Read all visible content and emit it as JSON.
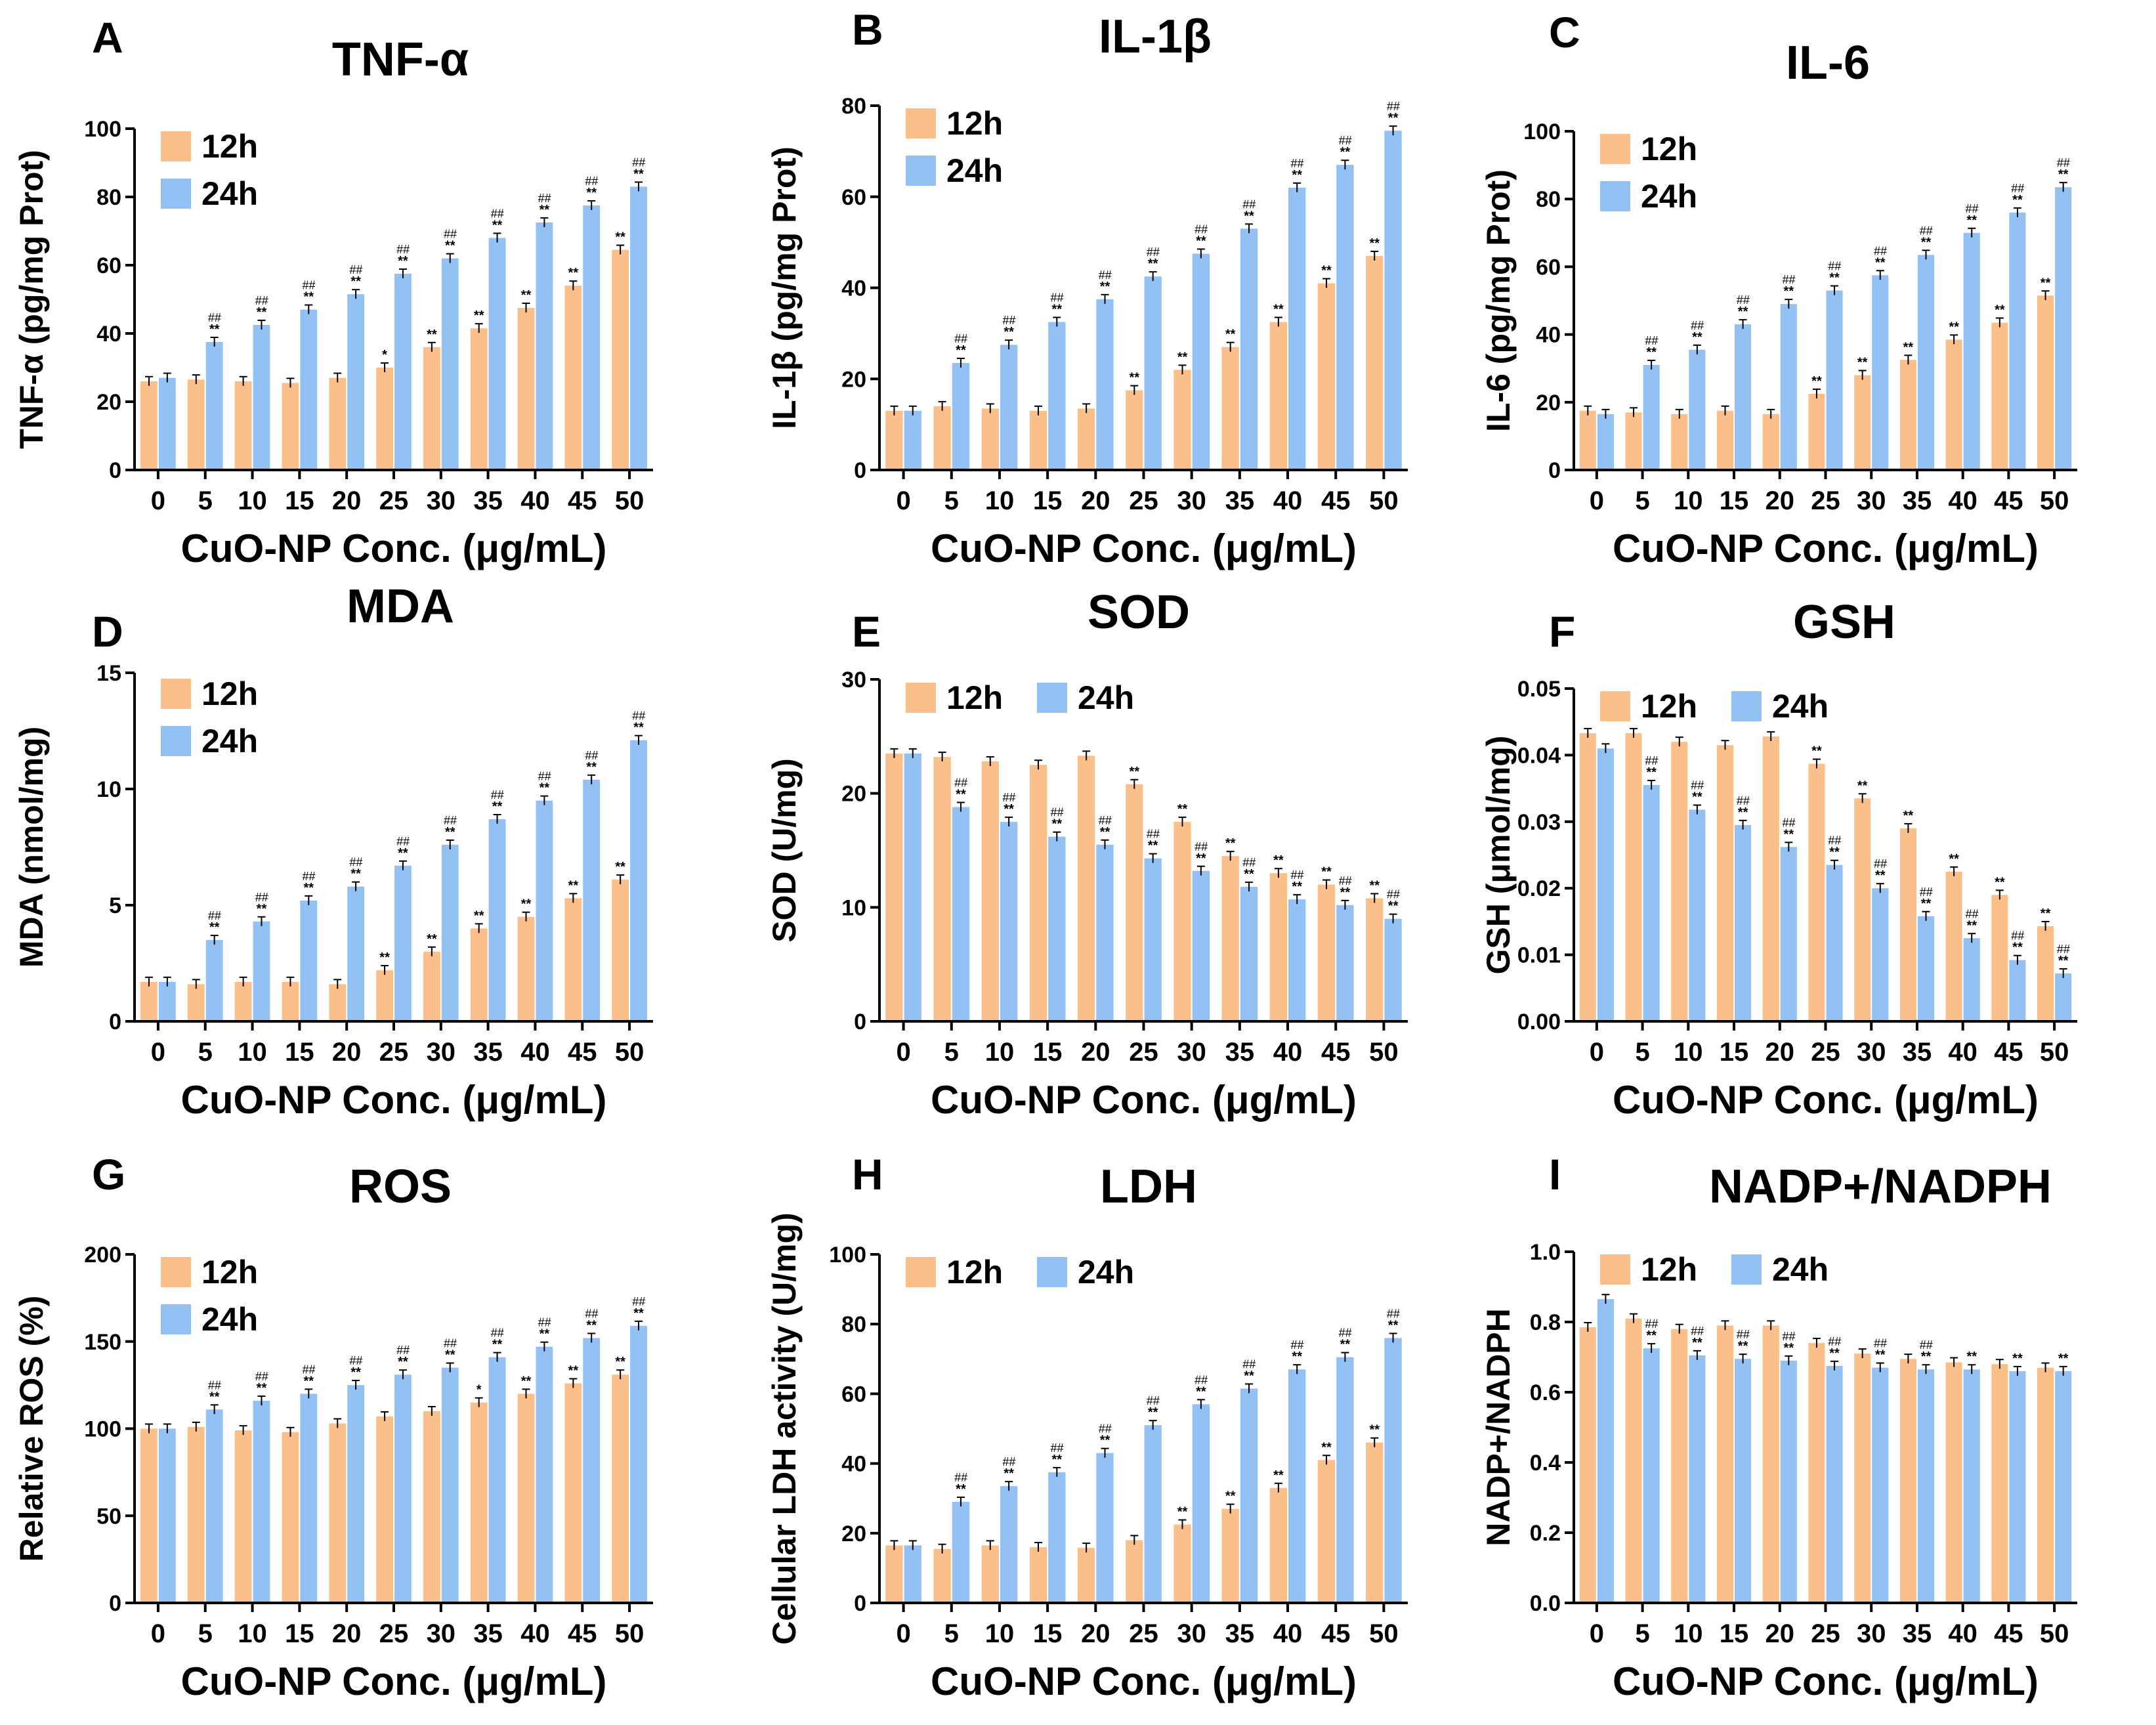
{
  "colors": {
    "h12": "#fbc08a",
    "h24": "#93c1f4"
  },
  "chart_data": [
    {
      "letter": "A",
      "title": "TNF-α",
      "type": "bar",
      "ylabel": "TNF-α (pg/mg Prot)",
      "xlabel": "CuO-NP Conc. (μg/mL)",
      "ylim": [
        0,
        100
      ],
      "yticks": [
        "0",
        "20",
        "40",
        "60",
        "80",
        "100"
      ],
      "legend": [
        "12h",
        "24h"
      ],
      "categories": [
        "0",
        "5",
        "10",
        "15",
        "20",
        "25",
        "30",
        "35",
        "40",
        "45",
        "50"
      ],
      "series": [
        {
          "name": "12h",
          "values": [
            26,
            26.5,
            26,
            25.5,
            27,
            30,
            36,
            41.5,
            47.5,
            54,
            64.5
          ],
          "marks": [
            "",
            "",
            "",
            "",
            "",
            "*",
            "**",
            "**",
            "**",
            "**",
            "**"
          ]
        },
        {
          "name": "24h",
          "values": [
            27,
            37.5,
            42.5,
            47,
            51.5,
            57.5,
            62,
            68,
            72.5,
            77.5,
            83
          ],
          "marks": [
            "",
            "** ##",
            "** ##",
            "** ##",
            "** ##",
            "** ##",
            "** ##",
            "** ##",
            "** ##",
            "** ##",
            "** ##"
          ]
        }
      ]
    },
    {
      "letter": "B",
      "title": "IL-1β",
      "type": "bar",
      "ylabel": "IL-1β (pg/mg Prot)",
      "xlabel": "CuO-NP Conc. (μg/mL)",
      "ylim": [
        0,
        80
      ],
      "yticks": [
        "0",
        "20",
        "40",
        "60",
        "80"
      ],
      "legend": [
        "12h",
        "24h"
      ],
      "categories": [
        "0",
        "5",
        "10",
        "15",
        "20",
        "25",
        "30",
        "35",
        "40",
        "45",
        "50"
      ],
      "series": [
        {
          "name": "12h",
          "values": [
            13,
            14,
            13.5,
            13,
            13.5,
            17.5,
            22,
            27,
            32.5,
            41,
            47
          ],
          "marks": [
            "",
            "",
            "",
            "",
            "",
            "**",
            "**",
            "**",
            "**",
            "**",
            "**"
          ]
        },
        {
          "name": "24h",
          "values": [
            13,
            23.5,
            27.5,
            32.5,
            37.5,
            42.5,
            47.5,
            53,
            62,
            67,
            74.5
          ],
          "marks": [
            "",
            "** ##",
            "** ##",
            "** ##",
            "** ##",
            "** ##",
            "** ##",
            "** ##",
            "** ##",
            "** ##",
            "** ##"
          ]
        }
      ]
    },
    {
      "letter": "C",
      "title": "IL-6",
      "type": "bar",
      "ylabel": "IL-6 (pg/mg Prot)",
      "xlabel": "CuO-NP Conc. (μg/mL)",
      "ylim": [
        0,
        100
      ],
      "yticks": [
        "0",
        "20",
        "40",
        "60",
        "80",
        "100"
      ],
      "legend": [
        "12h",
        "24h"
      ],
      "categories": [
        "0",
        "5",
        "10",
        "15",
        "20",
        "25",
        "30",
        "35",
        "40",
        "45",
        "50"
      ],
      "series": [
        {
          "name": "12h",
          "values": [
            17.5,
            17,
            16.5,
            17.5,
            16.5,
            22.5,
            28,
            32.5,
            38.5,
            43.5,
            51.5
          ],
          "marks": [
            "",
            "",
            "",
            "",
            "",
            "**",
            "**",
            "**",
            "**",
            "**",
            "**"
          ]
        },
        {
          "name": "24h",
          "values": [
            16.5,
            31,
            35.5,
            43,
            49,
            53,
            57.5,
            63.5,
            70,
            76,
            83.5
          ],
          "marks": [
            "",
            "** ##",
            "** ##",
            "** ##",
            "** ##",
            "** ##",
            "** ##",
            "** ##",
            "** ##",
            "** ##",
            "** ##"
          ]
        }
      ]
    },
    {
      "letter": "D",
      "title": "MDA",
      "type": "bar",
      "ylabel": "MDA (nmol/mg)",
      "xlabel": "CuO-NP Conc. (μg/mL)",
      "ylim": [
        0,
        15
      ],
      "yticks": [
        "0",
        "5",
        "10",
        "15"
      ],
      "legend": [
        "12h",
        "24h"
      ],
      "categories": [
        "0",
        "5",
        "10",
        "15",
        "20",
        "25",
        "30",
        "35",
        "40",
        "45",
        "50"
      ],
      "series": [
        {
          "name": "12h",
          "values": [
            1.7,
            1.6,
            1.7,
            1.7,
            1.6,
            2.2,
            3.0,
            4.0,
            4.5,
            5.3,
            6.1
          ],
          "marks": [
            "",
            "",
            "",
            "",
            "",
            "**",
            "**",
            "**",
            "**",
            "**",
            "**"
          ]
        },
        {
          "name": "24h",
          "values": [
            1.7,
            3.5,
            4.3,
            5.2,
            5.8,
            6.7,
            7.6,
            8.7,
            9.5,
            10.4,
            12.1
          ],
          "marks": [
            "",
            "** ##",
            "** ##",
            "** ##",
            "** ##",
            "** ##",
            "** ##",
            "** ##",
            "** ##",
            "** ##",
            "** ##"
          ]
        }
      ]
    },
    {
      "letter": "E",
      "title": "SOD",
      "type": "bar",
      "ylabel": "SOD (U/mg)",
      "xlabel": "CuO-NP Conc. (μg/mL)",
      "ylim": [
        0,
        30
      ],
      "yticks": [
        "0",
        "10",
        "20",
        "30"
      ],
      "legend": [
        "12h",
        "24h"
      ],
      "categories": [
        "0",
        "5",
        "10",
        "15",
        "20",
        "25",
        "30",
        "35",
        "40",
        "45",
        "50"
      ],
      "series": [
        {
          "name": "12h",
          "values": [
            23.5,
            23.2,
            22.8,
            22.5,
            23.3,
            20.8,
            17.5,
            14.5,
            13,
            12,
            10.8
          ],
          "marks": [
            "",
            "",
            "",
            "",
            "",
            "**",
            "**",
            "**",
            "**",
            "**",
            "**"
          ]
        },
        {
          "name": "24h",
          "values": [
            23.5,
            18.8,
            17.5,
            16.2,
            15.5,
            14.3,
            13.2,
            11.8,
            10.7,
            10.2,
            9.0
          ],
          "marks": [
            "",
            "** ##",
            "** ##",
            "** ##",
            "** ##",
            "** ##",
            "** ##",
            "** ##",
            "** ##",
            "** ##",
            "** ##"
          ]
        }
      ]
    },
    {
      "letter": "F",
      "title": "GSH",
      "type": "bar",
      "ylabel": "GSH (μmol/mg)",
      "xlabel": "CuO-NP Conc. (μg/mL)",
      "ylim": [
        0,
        0.05
      ],
      "yticks": [
        "0.00",
        "0.01",
        "0.02",
        "0.03",
        "0.04",
        "0.05"
      ],
      "legend": [
        "12h",
        "24h"
      ],
      "categories": [
        "0",
        "5",
        "10",
        "15",
        "20",
        "25",
        "30",
        "35",
        "40",
        "45",
        "50"
      ],
      "series": [
        {
          "name": "12h",
          "values": [
            0.0433,
            0.0433,
            0.042,
            0.0415,
            0.0428,
            0.0387,
            0.0335,
            0.029,
            0.0225,
            0.019,
            0.0143
          ],
          "marks": [
            "",
            "",
            "",
            "",
            "",
            "**",
            "**",
            "**",
            "**",
            "**",
            "**"
          ]
        },
        {
          "name": "24h",
          "values": [
            0.041,
            0.0355,
            0.0318,
            0.0295,
            0.0262,
            0.0235,
            0.02,
            0.0158,
            0.0125,
            0.0092,
            0.0072
          ],
          "marks": [
            "",
            "** ##",
            "** ##",
            "** ##",
            "** ##",
            "** ##",
            "** ##",
            "** ##",
            "** ##",
            "** ##",
            "** ##"
          ]
        }
      ]
    },
    {
      "letter": "G",
      "title": "ROS",
      "type": "bar",
      "ylabel": "Relative ROS (%)",
      "xlabel": "CuO-NP Conc. (μg/mL)",
      "ylim": [
        0,
        200
      ],
      "yticks": [
        "0",
        "50",
        "100",
        "150",
        "200"
      ],
      "legend": [
        "12h",
        "24h"
      ],
      "categories": [
        "0",
        "5",
        "10",
        "15",
        "20",
        "25",
        "30",
        "35",
        "40",
        "45",
        "50"
      ],
      "series": [
        {
          "name": "12h",
          "values": [
            100,
            101,
            99,
            98,
            103,
            107,
            110,
            115,
            120,
            126,
            131
          ],
          "marks": [
            "",
            "",
            "",
            "",
            "",
            "",
            "",
            "*",
            "**",
            "**",
            "**"
          ]
        },
        {
          "name": "24h",
          "values": [
            100,
            111,
            116,
            120,
            125,
            131,
            135,
            141,
            147,
            152,
            159
          ],
          "marks": [
            "",
            "** ##",
            "** ##",
            "** ##",
            "** ##",
            "** ##",
            "** ##",
            "** ##",
            "** ##",
            "** ##",
            "** ##"
          ]
        }
      ]
    },
    {
      "letter": "H",
      "title": "LDH",
      "type": "bar",
      "ylabel": "Cellular LDH activity (U/mg)",
      "xlabel": "CuO-NP Conc. (μg/mL)",
      "ylim": [
        0,
        100
      ],
      "yticks": [
        "0",
        "20",
        "40",
        "60",
        "80",
        "100"
      ],
      "legend": [
        "12h",
        "24h"
      ],
      "categories": [
        "0",
        "5",
        "10",
        "15",
        "20",
        "25",
        "30",
        "35",
        "40",
        "45",
        "50"
      ],
      "series": [
        {
          "name": "12h",
          "values": [
            16.5,
            15.5,
            16.5,
            16,
            15.8,
            18,
            22.5,
            27,
            33,
            41,
            46
          ],
          "marks": [
            "",
            "",
            "",
            "",
            "",
            "",
            "**",
            "**",
            "**",
            "**",
            "**"
          ]
        },
        {
          "name": "24h",
          "values": [
            16.5,
            29,
            33.5,
            37.5,
            43,
            51,
            57,
            61.5,
            67,
            70.5,
            76
          ],
          "marks": [
            "",
            "** ##",
            "** ##",
            "** ##",
            "** ##",
            "** ##",
            "** ##",
            "** ##",
            "** ##",
            "** ##",
            "** ##"
          ]
        }
      ]
    },
    {
      "letter": "I",
      "title": "NADP+/NADPH",
      "type": "bar",
      "ylabel": "NADP+/NADPH",
      "xlabel": "CuO-NP Conc. (μg/mL)",
      "ylim": [
        0,
        1
      ],
      "yticks": [
        "0.0",
        "0.2",
        "0.4",
        "0.6",
        "0.8",
        "1.0"
      ],
      "legend": [
        "12h",
        "24h"
      ],
      "categories": [
        "0",
        "5",
        "10",
        "15",
        "20",
        "25",
        "30",
        "35",
        "40",
        "45",
        "50"
      ],
      "series": [
        {
          "name": "12h",
          "values": [
            0.785,
            0.81,
            0.78,
            0.79,
            0.79,
            0.74,
            0.71,
            0.695,
            0.685,
            0.68,
            0.67
          ],
          "marks": [
            "",
            "",
            "",
            "",
            "",
            "",
            "",
            "",
            "",
            "",
            ""
          ]
        },
        {
          "name": "24h",
          "values": [
            0.865,
            0.725,
            0.705,
            0.695,
            0.69,
            0.675,
            0.67,
            0.665,
            0.665,
            0.66,
            0.66
          ],
          "marks": [
            "",
            "** ##",
            "** ##",
            "** ##",
            "** ##",
            "** ##",
            "** ##",
            "** ##",
            "**",
            "**",
            "**"
          ]
        }
      ]
    }
  ]
}
